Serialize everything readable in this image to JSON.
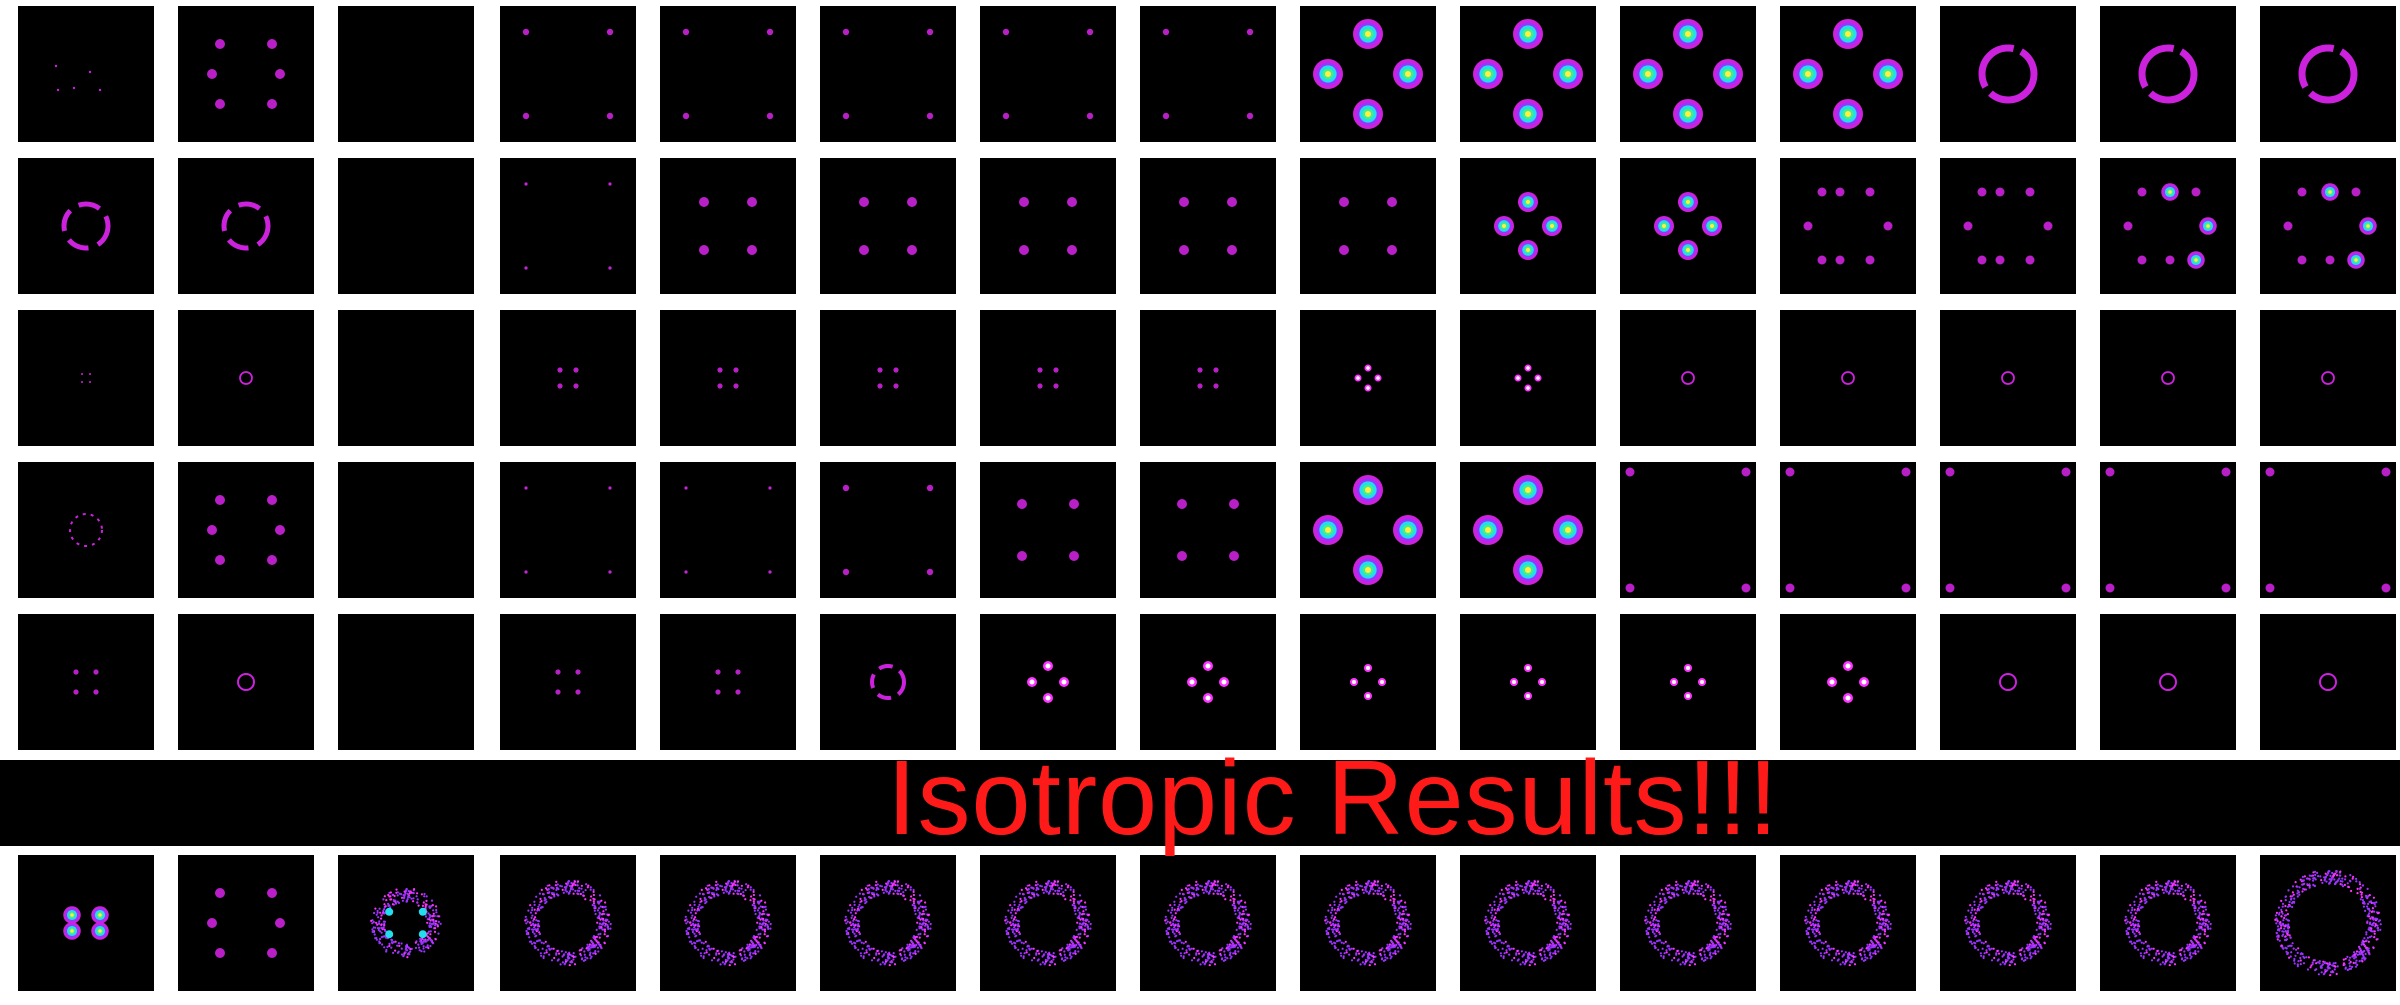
{
  "banner": {
    "text": "Isotropic Results!!!",
    "color": "#ff1a1a"
  },
  "grid": {
    "rows_top": 5,
    "columns": 15,
    "bottom_row_columns": 15,
    "panel_background": "#000000"
  },
  "palette": {
    "magenta": "#cc22dd",
    "bright_magenta": "#ff33ff",
    "cyan": "#22ddee",
    "yellow": "#ffee44",
    "white": "#ffffff",
    "violet": "#9933ff",
    "green": "#44ee88"
  },
  "panels": [
    [
      "sparse",
      "square-blobs",
      "empty",
      "corners-small",
      "corners-small",
      "corners-small",
      "corners-small",
      "corners-small",
      "diamond-hot",
      "diamond-hot",
      "diamond-hot",
      "diamond-hot",
      "ring-large",
      "ring-large",
      "ring-large"
    ],
    [
      "ring-broken",
      "ring-broken",
      "empty",
      "corners-faint",
      "square-dots",
      "square-dots",
      "square-dots",
      "square-dots",
      "square-dots",
      "diamond-warm",
      "diamond-warm",
      "multi-spots",
      "multi-spots",
      "multi-spots-hot",
      "multi-spots-hot"
    ],
    [
      "tiny-dots",
      "tiny-ring",
      "empty",
      "tiny-square",
      "tiny-square",
      "tiny-square",
      "tiny-square",
      "tiny-square",
      "tiny-diamond-hot",
      "tiny-diamond-hot",
      "tiny-ring",
      "tiny-ring",
      "tiny-ring",
      "tiny-ring",
      "tiny-ring"
    ],
    [
      "ring-dotted",
      "square-blobs",
      "empty",
      "corners-faint",
      "corners-faint",
      "corners-small",
      "diamond-mid",
      "diamond-mid",
      "diamond-hot",
      "diamond-hot",
      "far-corners",
      "far-corners",
      "far-corners",
      "far-corners",
      "far-corners"
    ],
    [
      "small-square",
      "small-ring",
      "empty",
      "small-square",
      "small-square",
      "small-ring-broken",
      "small-diamond-hot",
      "small-diamond-hot",
      "small-diamond",
      "small-diamond",
      "small-diamond",
      "small-diamond-hot",
      "small-ring",
      "small-ring",
      "small-ring"
    ],
    [
      "diamond-hot-noisy",
      "square-blobs",
      "ring-noisy-hot",
      "ring-noisy",
      "ring-noisy",
      "ring-noisy",
      "ring-noisy",
      "ring-noisy",
      "ring-noisy",
      "ring-noisy",
      "ring-noisy",
      "ring-noisy",
      "ring-noisy",
      "ring-noisy",
      "ring-noisy-large"
    ]
  ]
}
